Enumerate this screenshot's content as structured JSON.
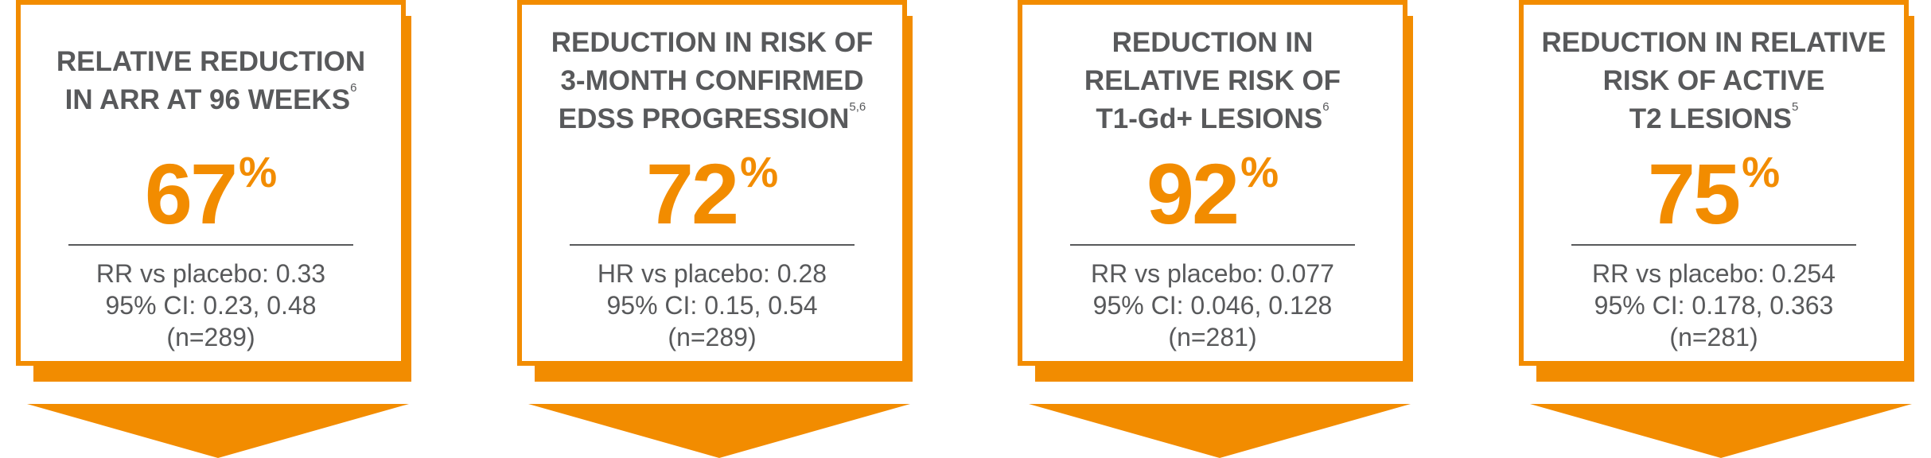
{
  "colors": {
    "accent": "#f28c00",
    "text": "#58595b",
    "background": "#ffffff"
  },
  "cards": [
    {
      "heading": [
        {
          "text": "RELATIVE REDUCTION",
          "sup": ""
        },
        {
          "text": "IN ARR AT 96 WEEKS",
          "sup": "6"
        }
      ],
      "value": "67",
      "unit": "%",
      "stats": [
        "RR vs placebo: 0.33",
        "95% CI: 0.23, 0.48",
        "(n=289)"
      ]
    },
    {
      "heading": [
        {
          "text": "REDUCTION IN RISK OF",
          "sup": ""
        },
        {
          "text": "3-MONTH CONFIRMED",
          "sup": ""
        },
        {
          "text": "EDSS PROGRESSION",
          "sup": "5,6"
        }
      ],
      "value": "72",
      "unit": "%",
      "stats": [
        "HR vs placebo: 0.28",
        "95% CI: 0.15, 0.54",
        "(n=289)"
      ]
    },
    {
      "heading": [
        {
          "text": "REDUCTION IN",
          "sup": ""
        },
        {
          "text": "RELATIVE RISK OF",
          "sup": ""
        },
        {
          "text": "T1-Gd+ LESIONS",
          "sup": "6"
        }
      ],
      "value": "92",
      "unit": "%",
      "stats": [
        "RR vs placebo: 0.077",
        "95% CI: 0.046, 0.128",
        "(n=281)"
      ]
    },
    {
      "heading": [
        {
          "text": "REDUCTION IN RELATIVE",
          "sup": ""
        },
        {
          "text": "RISK OF ACTIVE",
          "sup": ""
        },
        {
          "text": "T2 LESIONS",
          "sup": "5"
        }
      ],
      "value": "75",
      "unit": "%",
      "stats": [
        "RR vs placebo: 0.254",
        "95% CI: 0.178, 0.363",
        "(n=281)"
      ]
    }
  ]
}
